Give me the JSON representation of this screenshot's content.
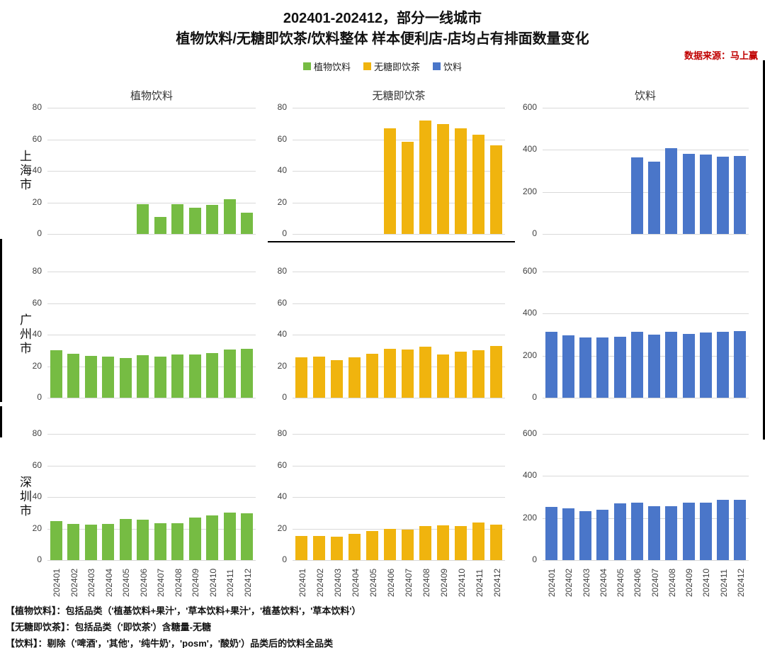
{
  "header": {
    "title_line1": "202401-202412，部分一线城市",
    "title_line2": "植物饮料/无糖即饮茶/饮料整体 样本便利店-店均占有排面数量变化",
    "source": "数据来源：马上赢"
  },
  "legend": [
    {
      "key": "plant-beverage",
      "label": "植物饮料",
      "color": "#76BC43"
    },
    {
      "key": "sugar-free-tea",
      "label": "无糖即饮茶",
      "color": "#F0B40E"
    },
    {
      "key": "beverage",
      "label": "饮料",
      "color": "#4A76C9"
    }
  ],
  "footnotes": [
    "【植物饮料】：包括品类（'植基饮料+果汁'，'草本饮料+果汁'，'植基饮料'，'草本饮料'）",
    "【无糖即饮茶】：包括品类（'即饮茶'）含糖量-无糖",
    "【饮料】：剔除（'啤酒'，'其他'，'纯牛奶'，'posm'，'酸奶'）品类后的饮料全品类"
  ],
  "chart_data": {
    "type": "bar",
    "grid": "horizontal gridlines on, light gray; small multiples 3 rows (cities) x 3 columns (categories)",
    "categories": [
      "202401",
      "202402",
      "202403",
      "202404",
      "202405",
      "202406",
      "202407",
      "202408",
      "202409",
      "202410",
      "202411",
      "202412"
    ],
    "columns": [
      {
        "title": "植物饮料",
        "color": "#76BC43",
        "ymax": 80,
        "yticks": [
          0,
          20,
          40,
          60,
          80
        ]
      },
      {
        "title": "无糖即饮茶",
        "color": "#F0B40E",
        "ymax": 80,
        "yticks": [
          0,
          20,
          40,
          60,
          80
        ]
      },
      {
        "title": "饮料",
        "color": "#4A76C9",
        "ymax": 600,
        "yticks": [
          0,
          200,
          400,
          600
        ]
      }
    ],
    "rows": [
      {
        "city": "上海市",
        "series": [
          {
            "name": "植物饮料",
            "values": [
              null,
              null,
              null,
              null,
              null,
              19,
              11,
              19,
              16.5,
              18.5,
              22,
              13.5
            ]
          },
          {
            "name": "无糖即饮茶",
            "values": [
              null,
              null,
              null,
              null,
              null,
              67,
              58.5,
              72,
              69.5,
              67,
              63,
              56
            ]
          },
          {
            "name": "饮料",
            "values": [
              null,
              null,
              null,
              null,
              null,
              365,
              345,
              407,
              380,
              377,
              367,
              372
            ]
          }
        ]
      },
      {
        "city": "广州市",
        "series": [
          {
            "name": "植物饮料",
            "values": [
              30,
              28,
              26.5,
              26,
              25,
              27,
              26,
              27.5,
              27.5,
              28.5,
              30.5,
              31
            ]
          },
          {
            "name": "无糖即饮茶",
            "values": [
              25.5,
              26,
              24,
              25.5,
              28,
              31,
              30.5,
              32.5,
              27.5,
              29,
              30,
              33
            ]
          },
          {
            "name": "饮料",
            "values": [
              313,
              298,
              287,
              285,
              290,
              312,
              300,
              313,
              304,
              311,
              313,
              316
            ]
          }
        ]
      },
      {
        "city": "深圳市",
        "series": [
          {
            "name": "植物饮料",
            "values": [
              24.5,
              23,
              22.5,
              23,
              26,
              25.5,
              23.5,
              23.5,
              27,
              28.5,
              30,
              29.5
            ]
          },
          {
            "name": "无糖即饮茶",
            "values": [
              15.5,
              15.5,
              15,
              16.5,
              18.5,
              20,
              19.5,
              21.5,
              22,
              21.5,
              24,
              22.5
            ]
          },
          {
            "name": "饮料",
            "values": [
              252,
              245,
              232,
              240,
              270,
              272,
              255,
              255,
              273,
              274,
              288,
              285
            ]
          }
        ]
      }
    ]
  }
}
